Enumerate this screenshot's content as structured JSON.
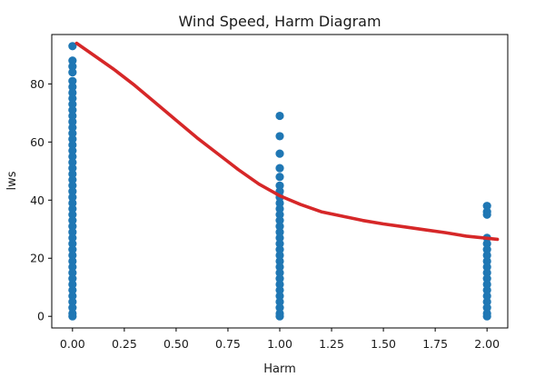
{
  "chart_data": {
    "type": "scatter",
    "title": "Wind Speed, Harm Diagram",
    "xlabel": "Harm",
    "ylabel": "lws",
    "xlim": [
      -0.1,
      2.1
    ],
    "ylim": [
      -4,
      97
    ],
    "xticks": [
      0.0,
      0.25,
      0.5,
      0.75,
      1.0,
      1.25,
      1.5,
      1.75,
      2.0
    ],
    "xtick_labels": [
      "0.00",
      "0.25",
      "0.50",
      "0.75",
      "1.00",
      "1.25",
      "1.50",
      "1.75",
      "2.00"
    ],
    "yticks": [
      0,
      20,
      40,
      60,
      80
    ],
    "ytick_labels": [
      "0",
      "20",
      "40",
      "60",
      "80"
    ],
    "grid": false,
    "series": [
      {
        "kind": "points",
        "color": "#1f77b4",
        "points": [
          {
            "x": 0,
            "y": 93
          },
          {
            "x": 0,
            "y": 88
          },
          {
            "x": 0,
            "y": 86
          },
          {
            "x": 0,
            "y": 84
          },
          {
            "x": 0,
            "y": 81
          },
          {
            "x": 0,
            "y": 79
          },
          {
            "x": 0,
            "y": 77
          },
          {
            "x": 0,
            "y": 75
          },
          {
            "x": 0,
            "y": 73
          },
          {
            "x": 0,
            "y": 71
          },
          {
            "x": 0,
            "y": 69
          },
          {
            "x": 0,
            "y": 67
          },
          {
            "x": 0,
            "y": 65
          },
          {
            "x": 0,
            "y": 63
          },
          {
            "x": 0,
            "y": 61
          },
          {
            "x": 0,
            "y": 59
          },
          {
            "x": 0,
            "y": 57
          },
          {
            "x": 0,
            "y": 55
          },
          {
            "x": 0,
            "y": 53
          },
          {
            "x": 0,
            "y": 51
          },
          {
            "x": 0,
            "y": 49
          },
          {
            "x": 0,
            "y": 47
          },
          {
            "x": 0,
            "y": 45
          },
          {
            "x": 0,
            "y": 43
          },
          {
            "x": 0,
            "y": 41
          },
          {
            "x": 0,
            "y": 39
          },
          {
            "x": 0,
            "y": 37
          },
          {
            "x": 0,
            "y": 35
          },
          {
            "x": 0,
            "y": 33
          },
          {
            "x": 0,
            "y": 31
          },
          {
            "x": 0,
            "y": 29
          },
          {
            "x": 0,
            "y": 27
          },
          {
            "x": 0,
            "y": 25
          },
          {
            "x": 0,
            "y": 23
          },
          {
            "x": 0,
            "y": 21
          },
          {
            "x": 0,
            "y": 19
          },
          {
            "x": 0,
            "y": 17
          },
          {
            "x": 0,
            "y": 15
          },
          {
            "x": 0,
            "y": 13
          },
          {
            "x": 0,
            "y": 11
          },
          {
            "x": 0,
            "y": 9
          },
          {
            "x": 0,
            "y": 7
          },
          {
            "x": 0,
            "y": 5
          },
          {
            "x": 0,
            "y": 3
          },
          {
            "x": 0,
            "y": 1
          },
          {
            "x": 0,
            "y": 0
          },
          {
            "x": 1,
            "y": 69
          },
          {
            "x": 1,
            "y": 62
          },
          {
            "x": 1,
            "y": 56
          },
          {
            "x": 1,
            "y": 51
          },
          {
            "x": 1,
            "y": 48
          },
          {
            "x": 1,
            "y": 45
          },
          {
            "x": 1,
            "y": 43
          },
          {
            "x": 1,
            "y": 41
          },
          {
            "x": 1,
            "y": 39
          },
          {
            "x": 1,
            "y": 37
          },
          {
            "x": 1,
            "y": 35
          },
          {
            "x": 1,
            "y": 33
          },
          {
            "x": 1,
            "y": 31
          },
          {
            "x": 1,
            "y": 29
          },
          {
            "x": 1,
            "y": 27
          },
          {
            "x": 1,
            "y": 25
          },
          {
            "x": 1,
            "y": 23
          },
          {
            "x": 1,
            "y": 21
          },
          {
            "x": 1,
            "y": 19
          },
          {
            "x": 1,
            "y": 17
          },
          {
            "x": 1,
            "y": 15
          },
          {
            "x": 1,
            "y": 13
          },
          {
            "x": 1,
            "y": 11
          },
          {
            "x": 1,
            "y": 9
          },
          {
            "x": 1,
            "y": 7
          },
          {
            "x": 1,
            "y": 5
          },
          {
            "x": 1,
            "y": 3
          },
          {
            "x": 1,
            "y": 1
          },
          {
            "x": 1,
            "y": 0
          },
          {
            "x": 2,
            "y": 38
          },
          {
            "x": 2,
            "y": 36
          },
          {
            "x": 2,
            "y": 35
          },
          {
            "x": 2,
            "y": 27
          },
          {
            "x": 2,
            "y": 25
          },
          {
            "x": 2,
            "y": 23
          },
          {
            "x": 2,
            "y": 21
          },
          {
            "x": 2,
            "y": 19
          },
          {
            "x": 2,
            "y": 17
          },
          {
            "x": 2,
            "y": 15
          },
          {
            "x": 2,
            "y": 13
          },
          {
            "x": 2,
            "y": 11
          },
          {
            "x": 2,
            "y": 9
          },
          {
            "x": 2,
            "y": 7
          },
          {
            "x": 2,
            "y": 5
          },
          {
            "x": 2,
            "y": 3
          },
          {
            "x": 2,
            "y": 1
          },
          {
            "x": 2,
            "y": 0
          }
        ]
      },
      {
        "kind": "line",
        "color": "#d62728",
        "points": [
          {
            "x": 0.02,
            "y": 94
          },
          {
            "x": 0.1,
            "y": 90
          },
          {
            "x": 0.2,
            "y": 85
          },
          {
            "x": 0.3,
            "y": 79.5
          },
          {
            "x": 0.4,
            "y": 73.5
          },
          {
            "x": 0.5,
            "y": 67.5
          },
          {
            "x": 0.6,
            "y": 61.5
          },
          {
            "x": 0.7,
            "y": 56
          },
          {
            "x": 0.8,
            "y": 50.5
          },
          {
            "x": 0.9,
            "y": 45.5
          },
          {
            "x": 1.0,
            "y": 41.5
          },
          {
            "x": 1.1,
            "y": 38.5
          },
          {
            "x": 1.2,
            "y": 36
          },
          {
            "x": 1.3,
            "y": 34.5
          },
          {
            "x": 1.4,
            "y": 33
          },
          {
            "x": 1.5,
            "y": 31.8
          },
          {
            "x": 1.6,
            "y": 30.8
          },
          {
            "x": 1.7,
            "y": 29.8
          },
          {
            "x": 1.8,
            "y": 28.8
          },
          {
            "x": 1.9,
            "y": 27.6
          },
          {
            "x": 2.05,
            "y": 26.5
          }
        ]
      }
    ]
  }
}
